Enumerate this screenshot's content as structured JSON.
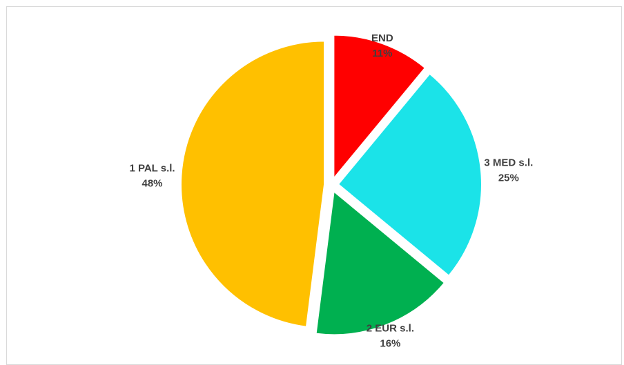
{
  "chart_data": {
    "type": "pie",
    "slices": [
      {
        "label": "END",
        "value": 11,
        "value_label": "11%",
        "color": "#FF0000",
        "exploded": true
      },
      {
        "label": "3 MED s.l.",
        "value": 25,
        "value_label": "25%",
        "color": "#1BE3E8",
        "exploded": true
      },
      {
        "label": "2 EUR s.l.",
        "value": 16,
        "value_label": "16%",
        "color": "#00B050",
        "exploded": true
      },
      {
        "label": "1 PAL s.l.",
        "value": 48,
        "value_label": "48%",
        "color": "#FFC000",
        "exploded": true
      }
    ],
    "start": "12 o'clock",
    "direction": "clockwise",
    "legend": "none",
    "data_labels": "category name and percentage"
  }
}
